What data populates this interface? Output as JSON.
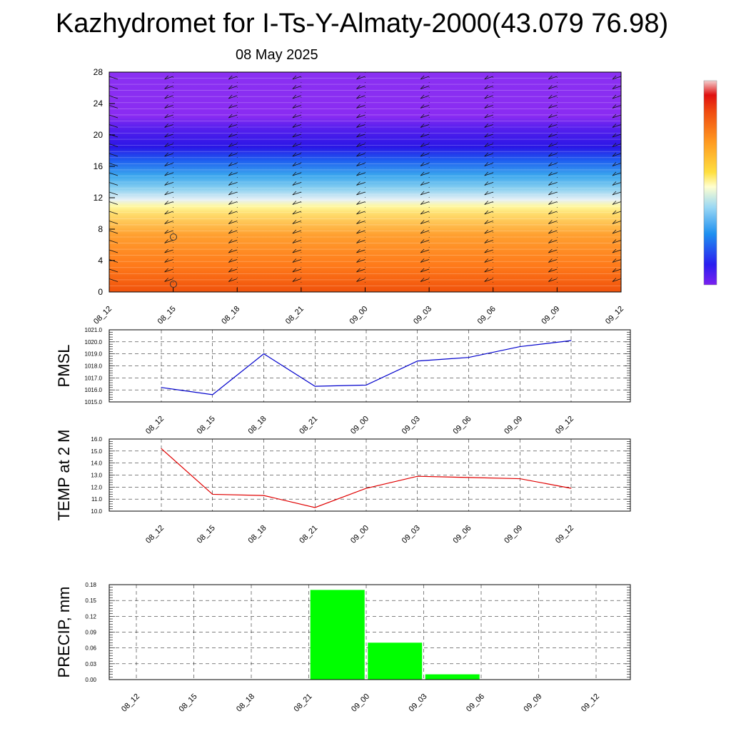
{
  "title": "Kazhydromet for I-Ts-Y-Almaty-2000(43.079 76.98)",
  "subtitle": "08 May 2025",
  "chart_data": [
    {
      "type": "heatmap",
      "description_role": "vertical cross-section with wind barbs",
      "x_ticks": [
        "08_12",
        "08_15",
        "08_18",
        "08_21",
        "09_00",
        "09_03",
        "09_06",
        "09_09",
        "09_12"
      ],
      "y_ticks": [
        "0",
        "4",
        "8",
        "12",
        "16",
        "20",
        "24",
        "28"
      ],
      "ylim": [
        0,
        28
      ],
      "colors": {
        "top": "#8a2be2",
        "blue": "#2a1ef0",
        "cyan": "#4ab4f0",
        "white": "#e8f0f8",
        "yellow": "#fff176",
        "orange": "#ff9a2a",
        "red": "#f04a10"
      }
    },
    {
      "type": "line",
      "ylabel": "PMSL",
      "categories": [
        "08_12",
        "08_15",
        "08_18",
        "08_21",
        "09_00",
        "09_03",
        "09_06",
        "09_09",
        "09_12"
      ],
      "series": [
        {
          "values": [
            1016.2,
            1015.6,
            1019.0,
            1016.3,
            1016.4,
            1018.4,
            1018.7,
            1019.6,
            1020.1
          ],
          "color": "#0000cc"
        }
      ],
      "y_ticks": [
        "1015.0",
        "1016.0",
        "1017.0",
        "1018.0",
        "1019.0",
        "1020.0",
        "1021.0"
      ],
      "ylim": [
        1015,
        1021
      ],
      "grid": true
    },
    {
      "type": "line",
      "ylabel": "TEMP at 2 M",
      "categories": [
        "08_12",
        "08_15",
        "08_18",
        "08_21",
        "09_00",
        "09_03",
        "09_06",
        "09_09",
        "09_12"
      ],
      "series": [
        {
          "values": [
            15.2,
            11.4,
            11.3,
            10.3,
            11.9,
            12.9,
            12.8,
            12.7,
            11.9
          ],
          "color": "#e00000"
        }
      ],
      "y_ticks": [
        "10.0",
        "11.0",
        "12.0",
        "13.0",
        "14.0",
        "15.0",
        "16.0"
      ],
      "ylim": [
        10,
        16
      ],
      "grid": true
    },
    {
      "type": "bar",
      "ylabel": "PRECIP, mm",
      "categories": [
        "08_12",
        "08_15",
        "08_18",
        "08_21",
        "09_00",
        "09_03",
        "09_06",
        "09_09",
        "09_12"
      ],
      "values": [
        0,
        0,
        0,
        0.17,
        0.07,
        0.01,
        0,
        0,
        0
      ],
      "y_ticks": [
        "0.00",
        "0.03",
        "0.06",
        "0.09",
        "0.12",
        "0.15",
        "0.18"
      ],
      "ylim": [
        0,
        0.18
      ],
      "color": "#00ff00",
      "grid": true
    }
  ]
}
